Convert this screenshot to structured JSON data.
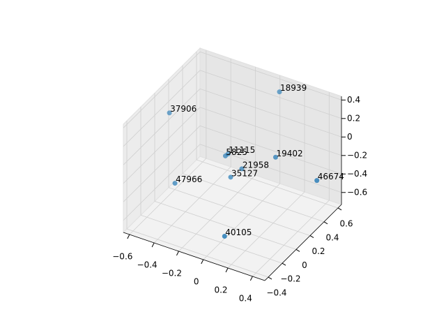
{
  "chart_data": {
    "type": "scatter3d",
    "labels": [
      "18939",
      "37906",
      "11115",
      "5825",
      "19402",
      "21958",
      "35127",
      "47966",
      "46674",
      "40105"
    ],
    "x": [
      0.03,
      -0.57,
      -0.23,
      -0.2,
      0.14,
      -0.09,
      -0.14,
      -0.44,
      0.47,
      0.02
    ],
    "y": [
      0.59,
      0.07,
      0.31,
      0.22,
      0.34,
      0.26,
      0.19,
      -0.08,
      0.35,
      -0.18
    ],
    "z": [
      0.32,
      0.21,
      -0.26,
      -0.2,
      -0.15,
      -0.32,
      -0.38,
      -0.38,
      -0.26,
      -0.67
    ],
    "color": "#1f77b4",
    "xlim": [
      -0.65,
      0.5
    ],
    "ylim": [
      -0.45,
      0.65
    ],
    "zlim": [
      -0.73,
      0.44
    ],
    "xticks": [
      {
        "value": -0.6,
        "label": "−0.6"
      },
      {
        "value": -0.4,
        "label": "−0.4"
      },
      {
        "value": -0.2,
        "label": "−0.2"
      },
      0.0,
      0.2,
      0.4
    ],
    "yticks": [
      {
        "value": -0.4,
        "label": "−0.4"
      },
      {
        "value": -0.2,
        "label": "−0.2"
      },
      0.0,
      0.2,
      0.4,
      0.6
    ],
    "zticks": [
      {
        "value": -0.6,
        "label": "−0.6"
      },
      {
        "value": -0.4,
        "label": "−0.4"
      },
      {
        "value": -0.2,
        "label": "−0.2"
      },
      0.0,
      0.2,
      0.4
    ],
    "grid": true
  }
}
